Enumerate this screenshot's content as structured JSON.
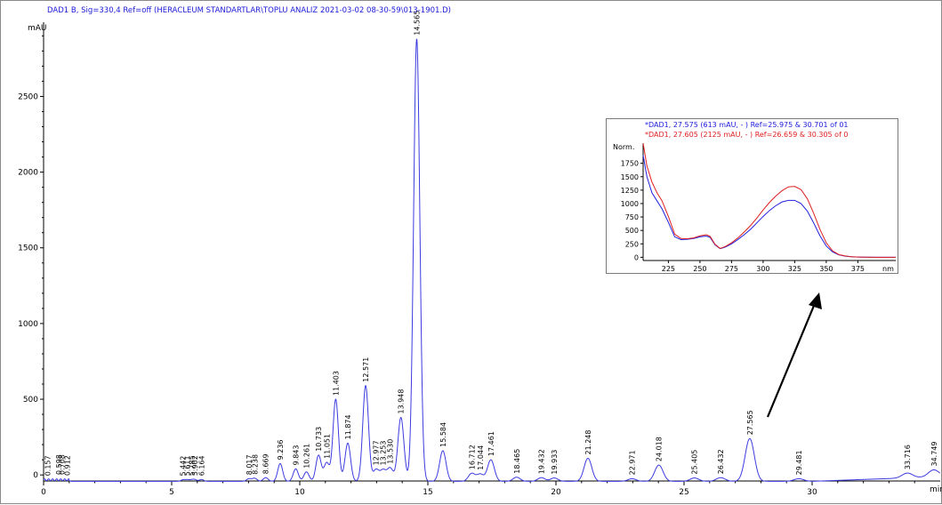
{
  "chart_data": [
    {
      "type": "line",
      "title": "DAD1 B, Sig=330,4 Ref=off (HERACLEUM STANDARTLAR\\TOPLU ANALIZ 2021-03-02 08-30-59\\013-1901.D)",
      "xlabel": "min",
      "ylabel": "mAU",
      "xlim": [
        0,
        35
      ],
      "ylim": [
        -40,
        2990
      ],
      "x_ticks": [
        "0",
        "5",
        "10",
        "15",
        "20",
        "25",
        "30"
      ],
      "y_ticks": [
        "0",
        "500",
        "1000",
        "1500",
        "2000",
        "2500"
      ],
      "grid": false,
      "line_color": "#3b3be0",
      "baseline": -42,
      "peaks": [
        {
          "label": "0.157",
          "rt": 0.157,
          "height": -30
        },
        {
          "label": "0.598",
          "rt": 0.598,
          "height": -25
        },
        {
          "label": "0.708",
          "rt": 0.708,
          "height": -25
        },
        {
          "label": "0.912",
          "rt": 0.912,
          "height": -28
        },
        {
          "label": "5.442",
          "rt": 5.442,
          "height": -32
        },
        {
          "label": "5.611",
          "rt": 5.611,
          "height": -32
        },
        {
          "label": "5.785",
          "rt": 5.785,
          "height": -34
        },
        {
          "label": "5.902",
          "rt": 5.902,
          "height": -32
        },
        {
          "label": "6.164",
          "rt": 6.164,
          "height": -30
        },
        {
          "label": "8.017",
          "rt": 8.017,
          "height": -25
        },
        {
          "label": "8.238",
          "rt": 8.238,
          "height": -22
        },
        {
          "label": "8.669",
          "rt": 8.669,
          "height": -18
        },
        {
          "label": "9.236",
          "rt": 9.236,
          "height": 75
        },
        {
          "label": "9.843",
          "rt": 9.843,
          "height": 40
        },
        {
          "label": "10.261",
          "rt": 10.261,
          "height": 20
        },
        {
          "label": "10.733",
          "rt": 10.733,
          "height": 130
        },
        {
          "label": "11.051",
          "rt": 11.051,
          "height": 80
        },
        {
          "label": "11.403",
          "rt": 11.403,
          "height": 500
        },
        {
          "label": "11.874",
          "rt": 11.874,
          "height": 210
        },
        {
          "label": "12.571",
          "rt": 12.571,
          "height": 590
        },
        {
          "label": "12.977",
          "rt": 12.977,
          "height": 35
        },
        {
          "label": "13.253",
          "rt": 13.253,
          "height": 30
        },
        {
          "label": "13.530",
          "rt": 13.53,
          "height": 45
        },
        {
          "label": "13.948",
          "rt": 13.948,
          "height": 380
        },
        {
          "label": "14.565",
          "rt": 14.565,
          "height": 2880
        },
        {
          "label": "15.584",
          "rt": 15.584,
          "height": 160
        },
        {
          "label": "16.712",
          "rt": 16.712,
          "height": 10
        },
        {
          "label": "17.044",
          "rt": 17.044,
          "height": 5
        },
        {
          "label": "17.461",
          "rt": 17.461,
          "height": 100
        },
        {
          "label": "18.465",
          "rt": 18.465,
          "height": -15
        },
        {
          "label": "19.432",
          "rt": 19.432,
          "height": -18
        },
        {
          "label": "19.933",
          "rt": 19.933,
          "height": -20
        },
        {
          "label": "21.248",
          "rt": 21.248,
          "height": 110
        },
        {
          "label": "22.971",
          "rt": 22.971,
          "height": -25
        },
        {
          "label": "24.018",
          "rt": 24.018,
          "height": 65
        },
        {
          "label": "25.405",
          "rt": 25.405,
          "height": -20
        },
        {
          "label": "26.432",
          "rt": 26.432,
          "height": -18
        },
        {
          "label": "27.565",
          "rt": 27.565,
          "height": 240
        },
        {
          "label": "29.481",
          "rt": 29.481,
          "height": -25
        },
        {
          "label": "33.716",
          "rt": 33.716,
          "height": -10
        },
        {
          "label": "34.749",
          "rt": 34.749,
          "height": 5
        }
      ]
    },
    {
      "type": "line",
      "title": "",
      "xlabel": "nm",
      "ylabel": "Norm.",
      "xlim": [
        205,
        405
      ],
      "ylim": [
        -60,
        2125
      ],
      "x_ticks": [
        "225",
        "250",
        "275",
        "300",
        "325",
        "350",
        "375"
      ],
      "y_ticks": [
        "0",
        "250",
        "500",
        "750",
        "1000",
        "1250",
        "1500",
        "1750"
      ],
      "legend": "top",
      "grid": false,
      "series": [
        {
          "name": "*DAD1, 27.575 (613 mAU, - ) Ref=25.975 & 30.701 of 01",
          "color": "#2020e0",
          "x": [
            205,
            208,
            212,
            216,
            220,
            225,
            230,
            235,
            240,
            245,
            250,
            255,
            258,
            262,
            266,
            270,
            275,
            280,
            285,
            290,
            295,
            300,
            305,
            310,
            315,
            320,
            325,
            330,
            335,
            340,
            345,
            350,
            355,
            360,
            365,
            370,
            375,
            380,
            390,
            400,
            405
          ],
          "y": [
            1900,
            1500,
            1200,
            1050,
            900,
            650,
            380,
            330,
            335,
            350,
            380,
            395,
            370,
            230,
            160,
            190,
            250,
            330,
            420,
            520,
            640,
            760,
            870,
            960,
            1030,
            1060,
            1060,
            1000,
            860,
            640,
            400,
            210,
            100,
            45,
            20,
            10,
            5,
            2,
            0,
            0,
            0
          ]
        },
        {
          "name": "*DAD1, 27.605 (2125 mAU, - ) Ref=26.659 & 30.305 of 0",
          "color": "#e02020",
          "x": [
            205,
            208,
            212,
            216,
            220,
            225,
            230,
            235,
            240,
            245,
            250,
            255,
            258,
            262,
            266,
            270,
            275,
            280,
            285,
            290,
            295,
            300,
            305,
            310,
            315,
            320,
            325,
            330,
            335,
            340,
            345,
            350,
            355,
            360,
            365,
            370,
            375,
            380,
            390,
            400,
            405
          ],
          "y": [
            2125,
            1700,
            1400,
            1200,
            1050,
            760,
            430,
            350,
            345,
            360,
            400,
            420,
            390,
            240,
            165,
            200,
            270,
            360,
            470,
            590,
            730,
            880,
            1020,
            1140,
            1240,
            1310,
            1320,
            1260,
            1090,
            820,
            520,
            270,
            120,
            50,
            25,
            10,
            5,
            2,
            0,
            0,
            0
          ]
        }
      ]
    }
  ]
}
